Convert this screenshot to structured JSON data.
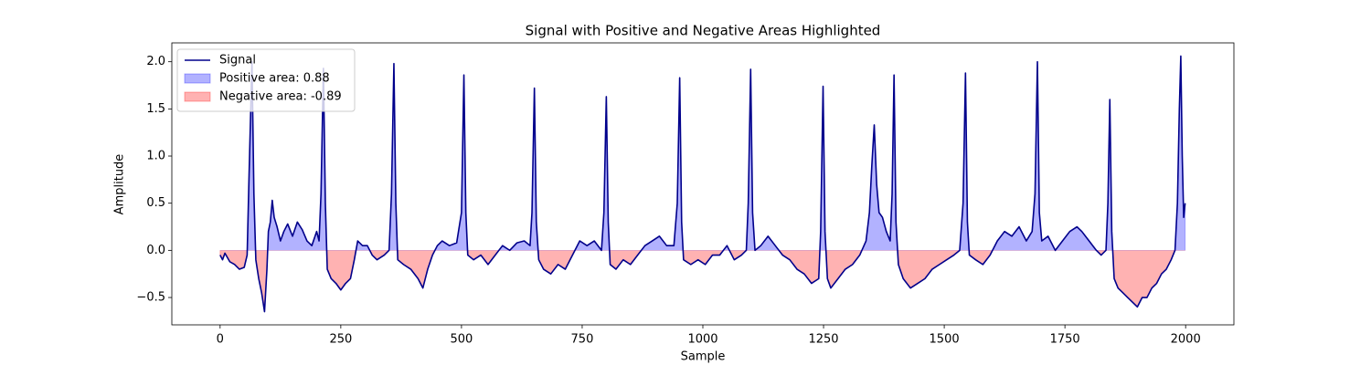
{
  "chart_data": {
    "type": "line",
    "title": "Signal with Positive and Negative Areas Highlighted",
    "x_label": "Sample",
    "y_label": "Amplitude",
    "xlim": [
      -100,
      2100
    ],
    "ylim": [
      -0.79,
      2.2
    ],
    "xticks": [
      0,
      250,
      500,
      750,
      1000,
      1250,
      1500,
      1750,
      2000
    ],
    "yticks": [
      {
        "value": -0.5,
        "label": "−0.5"
      },
      {
        "value": 0,
        "label": "0.0"
      },
      0.5,
      {
        "value": 1,
        "label": "1.0"
      },
      1.5,
      {
        "value": 2,
        "label": "2.0"
      }
    ],
    "legend": "upper left",
    "x": [
      0,
      5,
      10,
      20,
      30,
      40,
      50,
      56,
      60,
      66,
      70,
      74,
      80,
      86,
      92,
      97,
      100,
      104,
      108,
      112,
      118,
      125,
      132,
      140,
      150,
      160,
      170,
      180,
      190,
      200,
      205,
      209,
      214,
      218,
      222,
      230,
      240,
      250,
      260,
      270,
      278,
      285,
      295,
      305,
      315,
      325,
      340,
      350,
      355,
      360,
      364,
      368,
      380,
      395,
      410,
      420,
      430,
      440,
      450,
      460,
      475,
      490,
      500,
      505,
      509,
      513,
      525,
      540,
      555,
      570,
      585,
      600,
      615,
      630,
      642,
      646,
      651,
      655,
      660,
      670,
      685,
      700,
      715,
      730,
      745,
      760,
      775,
      790,
      795,
      800,
      804,
      808,
      820,
      835,
      850,
      865,
      880,
      895,
      910,
      925,
      940,
      947,
      952,
      956,
      960,
      975,
      990,
      1005,
      1020,
      1035,
      1050,
      1065,
      1080,
      1090,
      1094,
      1099,
      1103,
      1108,
      1120,
      1135,
      1150,
      1165,
      1180,
      1195,
      1210,
      1225,
      1240,
      1244,
      1249,
      1253,
      1258,
      1265,
      1280,
      1295,
      1310,
      1325,
      1338,
      1345,
      1350,
      1355,
      1360,
      1365,
      1372,
      1380,
      1388,
      1392,
      1396,
      1400,
      1405,
      1415,
      1430,
      1445,
      1460,
      1475,
      1490,
      1505,
      1520,
      1532,
      1539,
      1544,
      1548,
      1552,
      1565,
      1580,
      1595,
      1610,
      1625,
      1640,
      1655,
      1670,
      1682,
      1688,
      1693,
      1697,
      1702,
      1715,
      1730,
      1745,
      1760,
      1775,
      1785,
      1800,
      1815,
      1825,
      1835,
      1839,
      1843,
      1847,
      1852,
      1860,
      1870,
      1880,
      1890,
      1900,
      1910,
      1920,
      1930,
      1940,
      1950,
      1960,
      1970,
      1978,
      1983,
      1987,
      1990,
      1993,
      1996,
      1999
    ],
    "series": [
      {
        "name": "Signal",
        "color": "#00008b",
        "values": [
          -0.05,
          -0.1,
          -0.03,
          -0.12,
          -0.15,
          -0.2,
          -0.18,
          -0.05,
          0.8,
          2.0,
          0.6,
          -0.1,
          -0.3,
          -0.45,
          -0.65,
          -0.2,
          0.2,
          0.3,
          0.53,
          0.35,
          0.25,
          0.1,
          0.2,
          0.28,
          0.15,
          0.3,
          0.22,
          0.1,
          0.05,
          0.2,
          0.1,
          0.6,
          1.93,
          0.5,
          -0.2,
          -0.3,
          -0.35,
          -0.42,
          -0.35,
          -0.3,
          -0.1,
          0.1,
          0.05,
          0.05,
          -0.05,
          -0.1,
          -0.05,
          0.0,
          0.6,
          1.98,
          0.5,
          -0.1,
          -0.15,
          -0.2,
          -0.3,
          -0.4,
          -0.2,
          -0.05,
          0.05,
          0.1,
          0.05,
          0.08,
          0.4,
          1.86,
          0.4,
          -0.05,
          -0.1,
          -0.05,
          -0.15,
          -0.05,
          0.05,
          0.0,
          0.08,
          0.1,
          0.05,
          0.4,
          1.72,
          0.3,
          -0.1,
          -0.2,
          -0.25,
          -0.15,
          -0.2,
          -0.05,
          0.1,
          0.05,
          0.1,
          0.0,
          0.4,
          1.63,
          0.3,
          -0.15,
          -0.2,
          -0.1,
          -0.15,
          -0.05,
          0.05,
          0.1,
          0.15,
          0.05,
          0.05,
          0.5,
          1.83,
          0.3,
          -0.1,
          -0.15,
          -0.1,
          -0.15,
          -0.05,
          -0.05,
          0.05,
          -0.1,
          -0.05,
          0.0,
          0.5,
          1.92,
          0.4,
          0.0,
          0.05,
          0.15,
          0.05,
          -0.05,
          -0.1,
          -0.2,
          -0.25,
          -0.35,
          -0.3,
          0.2,
          1.74,
          0.2,
          -0.3,
          -0.4,
          -0.3,
          -0.2,
          -0.15,
          -0.05,
          0.1,
          0.4,
          0.9,
          1.33,
          0.7,
          0.4,
          0.35,
          0.2,
          0.1,
          0.6,
          1.86,
          0.3,
          -0.15,
          -0.3,
          -0.4,
          -0.35,
          -0.3,
          -0.2,
          -0.15,
          -0.1,
          -0.05,
          0.0,
          0.5,
          1.88,
          0.3,
          -0.05,
          -0.1,
          -0.15,
          -0.05,
          0.1,
          0.2,
          0.15,
          0.25,
          0.1,
          0.2,
          0.6,
          2.0,
          0.4,
          0.1,
          0.15,
          0.0,
          0.1,
          0.2,
          0.25,
          0.2,
          0.1,
          0.0,
          -0.05,
          0.0,
          0.5,
          1.6,
          0.2,
          -0.3,
          -0.4,
          -0.45,
          -0.5,
          -0.55,
          -0.6,
          -0.5,
          -0.5,
          -0.4,
          -0.35,
          -0.25,
          -0.2,
          -0.1,
          0.0,
          0.5,
          1.5,
          2.06,
          1.0,
          0.35,
          0.5
        ]
      }
    ],
    "areas": [
      {
        "name": "Positive area: 0.88",
        "color": "blue"
      },
      {
        "name": "Negative area: -0.89",
        "color": "red"
      }
    ]
  }
}
